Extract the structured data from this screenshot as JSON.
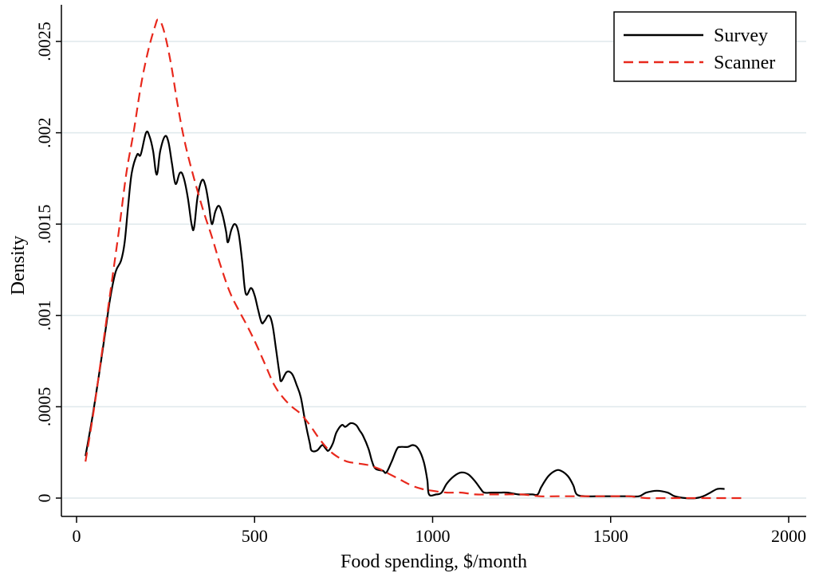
{
  "chart_data": {
    "type": "line",
    "title": "",
    "xlabel": "Food spending, $/month",
    "ylabel": "Density",
    "xlim": [
      0,
      2000
    ],
    "ylim": [
      0,
      0.0026
    ],
    "x_ticks": [
      0,
      500,
      1000,
      1500,
      2000
    ],
    "x_tick_labels": [
      "0",
      "500",
      "1000",
      "1500",
      "2000"
    ],
    "y_ticks": [
      0,
      0.0005,
      0.001,
      0.0015,
      0.002,
      0.0025
    ],
    "y_tick_labels": [
      "0",
      ".0005",
      ".001",
      ".0015",
      ".002",
      ".0025"
    ],
    "grid": "horizontal",
    "legend_position": "top-right",
    "series": [
      {
        "name": "Survey",
        "color": "#000000",
        "style": "solid",
        "points": [
          [
            25,
            0.00023
          ],
          [
            45,
            0.00045
          ],
          [
            65,
            0.0007
          ],
          [
            80,
            0.0009
          ],
          [
            95,
            0.0011
          ],
          [
            110,
            0.00124
          ],
          [
            125,
            0.0013
          ],
          [
            135,
            0.0014
          ],
          [
            145,
            0.0016
          ],
          [
            155,
            0.00178
          ],
          [
            170,
            0.00188
          ],
          [
            180,
            0.00188
          ],
          [
            195,
            0.002
          ],
          [
            205,
            0.00198
          ],
          [
            215,
            0.0019
          ],
          [
            225,
            0.00177
          ],
          [
            235,
            0.0019
          ],
          [
            248,
            0.00198
          ],
          [
            258,
            0.00195
          ],
          [
            268,
            0.00183
          ],
          [
            278,
            0.00172
          ],
          [
            290,
            0.00178
          ],
          [
            300,
            0.00176
          ],
          [
            312,
            0.00165
          ],
          [
            323,
            0.0015
          ],
          [
            330,
            0.00148
          ],
          [
            340,
            0.00165
          ],
          [
            352,
            0.00174
          ],
          [
            362,
            0.00171
          ],
          [
            372,
            0.0016
          ],
          [
            380,
            0.0015
          ],
          [
            390,
            0.00157
          ],
          [
            400,
            0.0016
          ],
          [
            410,
            0.00155
          ],
          [
            420,
            0.00146
          ],
          [
            425,
            0.0014
          ],
          [
            435,
            0.00147
          ],
          [
            445,
            0.0015
          ],
          [
            455,
            0.00145
          ],
          [
            465,
            0.0013
          ],
          [
            475,
            0.00112
          ],
          [
            490,
            0.00115
          ],
          [
            500,
            0.00111
          ],
          [
            510,
            0.00103
          ],
          [
            520,
            0.00096
          ],
          [
            528,
            0.00097
          ],
          [
            540,
            0.001
          ],
          [
            550,
            0.00095
          ],
          [
            560,
            0.00082
          ],
          [
            570,
            0.00068
          ],
          [
            575,
            0.00064
          ],
          [
            590,
            0.00069
          ],
          [
            605,
            0.00068
          ],
          [
            618,
            0.00062
          ],
          [
            630,
            0.00055
          ],
          [
            642,
            0.00042
          ],
          [
            655,
            0.0003
          ],
          [
            660,
            0.00026
          ],
          [
            675,
            0.00026
          ],
          [
            690,
            0.00029
          ],
          [
            700,
            0.00027
          ],
          [
            708,
            0.00026
          ],
          [
            720,
            0.0003
          ],
          [
            730,
            0.00036
          ],
          [
            745,
            0.0004
          ],
          [
            755,
            0.00039
          ],
          [
            770,
            0.00041
          ],
          [
            785,
            0.0004
          ],
          [
            795,
            0.00037
          ],
          [
            805,
            0.00034
          ],
          [
            820,
            0.00027
          ],
          [
            830,
            0.0002
          ],
          [
            840,
            0.00016
          ],
          [
            860,
            0.00015
          ],
          [
            870,
            0.00014
          ],
          [
            885,
            0.0002
          ],
          [
            900,
            0.00027
          ],
          [
            910,
            0.00028
          ],
          [
            930,
            0.00028
          ],
          [
            945,
            0.00029
          ],
          [
            960,
            0.00027
          ],
          [
            975,
            0.0002
          ],
          [
            985,
            0.0001
          ],
          [
            990,
            2e-05
          ],
          [
            1010,
            2e-05
          ],
          [
            1025,
            3e-05
          ],
          [
            1040,
            8e-05
          ],
          [
            1060,
            0.00012
          ],
          [
            1080,
            0.00014
          ],
          [
            1100,
            0.00013
          ],
          [
            1120,
            9e-05
          ],
          [
            1135,
            5e-05
          ],
          [
            1145,
            3e-05
          ],
          [
            1165,
            3e-05
          ],
          [
            1190,
            3e-05
          ],
          [
            1210,
            3e-05
          ],
          [
            1240,
            2e-05
          ],
          [
            1260,
            2e-05
          ],
          [
            1280,
            2e-05
          ],
          [
            1295,
            2e-05
          ],
          [
            1305,
            6e-05
          ],
          [
            1325,
            0.00012
          ],
          [
            1345,
            0.00015
          ],
          [
            1360,
            0.00015
          ],
          [
            1380,
            0.00012
          ],
          [
            1395,
            7e-05
          ],
          [
            1405,
            2e-05
          ],
          [
            1430,
            1e-05
          ],
          [
            1460,
            1e-05
          ],
          [
            1490,
            1e-05
          ],
          [
            1520,
            1e-05
          ],
          [
            1550,
            1e-05
          ],
          [
            1580,
            1e-05
          ],
          [
            1600,
            3e-05
          ],
          [
            1630,
            4e-05
          ],
          [
            1660,
            3e-05
          ],
          [
            1680,
            1e-05
          ],
          [
            1710,
            0.0
          ],
          [
            1740,
            0.0
          ],
          [
            1760,
            1e-05
          ],
          [
            1780,
            3e-05
          ],
          [
            1800,
            5e-05
          ],
          [
            1820,
            5e-05
          ]
        ]
      },
      {
        "name": "Scanner",
        "color": "#e8281c",
        "style": "dashed",
        "points": [
          [
            25,
            0.0002
          ],
          [
            50,
            0.0005
          ],
          [
            75,
            0.00085
          ],
          [
            100,
            0.0012
          ],
          [
            120,
            0.00148
          ],
          [
            140,
            0.00178
          ],
          [
            160,
            0.002
          ],
          [
            180,
            0.00225
          ],
          [
            200,
            0.00244
          ],
          [
            220,
            0.00258
          ],
          [
            230,
            0.00262
          ],
          [
            245,
            0.00256
          ],
          [
            265,
            0.00238
          ],
          [
            285,
            0.00214
          ],
          [
            305,
            0.00194
          ],
          [
            330,
            0.00175
          ],
          [
            355,
            0.00158
          ],
          [
            380,
            0.00143
          ],
          [
            405,
            0.00127
          ],
          [
            430,
            0.00113
          ],
          [
            455,
            0.00103
          ],
          [
            480,
            0.00094
          ],
          [
            505,
            0.00084
          ],
          [
            530,
            0.00073
          ],
          [
            555,
            0.00062
          ],
          [
            580,
            0.00055
          ],
          [
            605,
            0.0005
          ],
          [
            630,
            0.00046
          ],
          [
            655,
            0.0004
          ],
          [
            680,
            0.00033
          ],
          [
            705,
            0.00027
          ],
          [
            730,
            0.00023
          ],
          [
            760,
            0.0002
          ],
          [
            790,
            0.00019
          ],
          [
            820,
            0.00018
          ],
          [
            850,
            0.00016
          ],
          [
            880,
            0.00013
          ],
          [
            910,
            0.0001
          ],
          [
            940,
            7e-05
          ],
          [
            970,
            5e-05
          ],
          [
            1000,
            4e-05
          ],
          [
            1040,
            3e-05
          ],
          [
            1080,
            3e-05
          ],
          [
            1120,
            2e-05
          ],
          [
            1160,
            2e-05
          ],
          [
            1200,
            2e-05
          ],
          [
            1250,
            2e-05
          ],
          [
            1300,
            1e-05
          ],
          [
            1350,
            1e-05
          ],
          [
            1400,
            1e-05
          ],
          [
            1450,
            1e-05
          ],
          [
            1500,
            1e-05
          ],
          [
            1550,
            1e-05
          ],
          [
            1600,
            0.0
          ],
          [
            1650,
            0.0
          ],
          [
            1700,
            0.0
          ],
          [
            1750,
            0.0
          ],
          [
            1800,
            0.0
          ],
          [
            1850,
            0.0
          ],
          [
            1880,
            0.0
          ]
        ]
      }
    ]
  }
}
